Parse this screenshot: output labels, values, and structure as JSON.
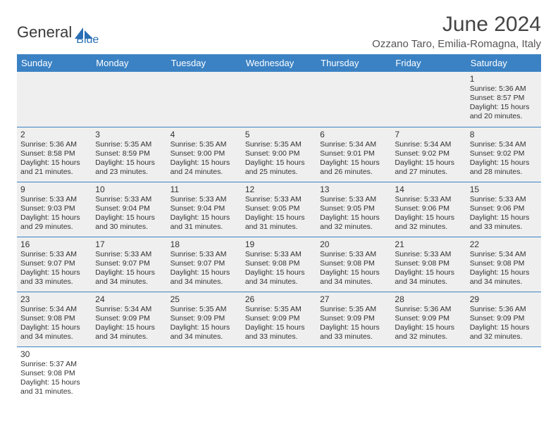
{
  "brand": {
    "part1": "General",
    "part2": "Blue"
  },
  "title": "June 2024",
  "location": "Ozzano Taro, Emilia-Romagna, Italy",
  "colors": {
    "header_bg": "#3b82c4",
    "header_text": "#ffffff",
    "cell_bg": "#efefef",
    "border": "#3b82c4",
    "title_color": "#444444",
    "text_color": "#333333",
    "logo_dark": "#3a3a3a",
    "logo_blue": "#2a6fb5"
  },
  "days_of_week": [
    "Sunday",
    "Monday",
    "Tuesday",
    "Wednesday",
    "Thursday",
    "Friday",
    "Saturday"
  ],
  "weeks": [
    [
      null,
      null,
      null,
      null,
      null,
      null,
      {
        "n": "1",
        "sr": "5:36 AM",
        "ss": "8:57 PM",
        "dl": "15 hours and 20 minutes."
      }
    ],
    [
      {
        "n": "2",
        "sr": "5:36 AM",
        "ss": "8:58 PM",
        "dl": "15 hours and 21 minutes."
      },
      {
        "n": "3",
        "sr": "5:35 AM",
        "ss": "8:59 PM",
        "dl": "15 hours and 23 minutes."
      },
      {
        "n": "4",
        "sr": "5:35 AM",
        "ss": "9:00 PM",
        "dl": "15 hours and 24 minutes."
      },
      {
        "n": "5",
        "sr": "5:35 AM",
        "ss": "9:00 PM",
        "dl": "15 hours and 25 minutes."
      },
      {
        "n": "6",
        "sr": "5:34 AM",
        "ss": "9:01 PM",
        "dl": "15 hours and 26 minutes."
      },
      {
        "n": "7",
        "sr": "5:34 AM",
        "ss": "9:02 PM",
        "dl": "15 hours and 27 minutes."
      },
      {
        "n": "8",
        "sr": "5:34 AM",
        "ss": "9:02 PM",
        "dl": "15 hours and 28 minutes."
      }
    ],
    [
      {
        "n": "9",
        "sr": "5:33 AM",
        "ss": "9:03 PM",
        "dl": "15 hours and 29 minutes."
      },
      {
        "n": "10",
        "sr": "5:33 AM",
        "ss": "9:04 PM",
        "dl": "15 hours and 30 minutes."
      },
      {
        "n": "11",
        "sr": "5:33 AM",
        "ss": "9:04 PM",
        "dl": "15 hours and 31 minutes."
      },
      {
        "n": "12",
        "sr": "5:33 AM",
        "ss": "9:05 PM",
        "dl": "15 hours and 31 minutes."
      },
      {
        "n": "13",
        "sr": "5:33 AM",
        "ss": "9:05 PM",
        "dl": "15 hours and 32 minutes."
      },
      {
        "n": "14",
        "sr": "5:33 AM",
        "ss": "9:06 PM",
        "dl": "15 hours and 32 minutes."
      },
      {
        "n": "15",
        "sr": "5:33 AM",
        "ss": "9:06 PM",
        "dl": "15 hours and 33 minutes."
      }
    ],
    [
      {
        "n": "16",
        "sr": "5:33 AM",
        "ss": "9:07 PM",
        "dl": "15 hours and 33 minutes."
      },
      {
        "n": "17",
        "sr": "5:33 AM",
        "ss": "9:07 PM",
        "dl": "15 hours and 34 minutes."
      },
      {
        "n": "18",
        "sr": "5:33 AM",
        "ss": "9:07 PM",
        "dl": "15 hours and 34 minutes."
      },
      {
        "n": "19",
        "sr": "5:33 AM",
        "ss": "9:08 PM",
        "dl": "15 hours and 34 minutes."
      },
      {
        "n": "20",
        "sr": "5:33 AM",
        "ss": "9:08 PM",
        "dl": "15 hours and 34 minutes."
      },
      {
        "n": "21",
        "sr": "5:33 AM",
        "ss": "9:08 PM",
        "dl": "15 hours and 34 minutes."
      },
      {
        "n": "22",
        "sr": "5:34 AM",
        "ss": "9:08 PM",
        "dl": "15 hours and 34 minutes."
      }
    ],
    [
      {
        "n": "23",
        "sr": "5:34 AM",
        "ss": "9:08 PM",
        "dl": "15 hours and 34 minutes."
      },
      {
        "n": "24",
        "sr": "5:34 AM",
        "ss": "9:09 PM",
        "dl": "15 hours and 34 minutes."
      },
      {
        "n": "25",
        "sr": "5:35 AM",
        "ss": "9:09 PM",
        "dl": "15 hours and 34 minutes."
      },
      {
        "n": "26",
        "sr": "5:35 AM",
        "ss": "9:09 PM",
        "dl": "15 hours and 33 minutes."
      },
      {
        "n": "27",
        "sr": "5:35 AM",
        "ss": "9:09 PM",
        "dl": "15 hours and 33 minutes."
      },
      {
        "n": "28",
        "sr": "5:36 AM",
        "ss": "9:09 PM",
        "dl": "15 hours and 32 minutes."
      },
      {
        "n": "29",
        "sr": "5:36 AM",
        "ss": "9:09 PM",
        "dl": "15 hours and 32 minutes."
      }
    ],
    [
      {
        "n": "30",
        "sr": "5:37 AM",
        "ss": "9:08 PM",
        "dl": "15 hours and 31 minutes."
      },
      null,
      null,
      null,
      null,
      null,
      null
    ]
  ],
  "labels": {
    "sunrise": "Sunrise:",
    "sunset": "Sunset:",
    "daylight": "Daylight:"
  }
}
